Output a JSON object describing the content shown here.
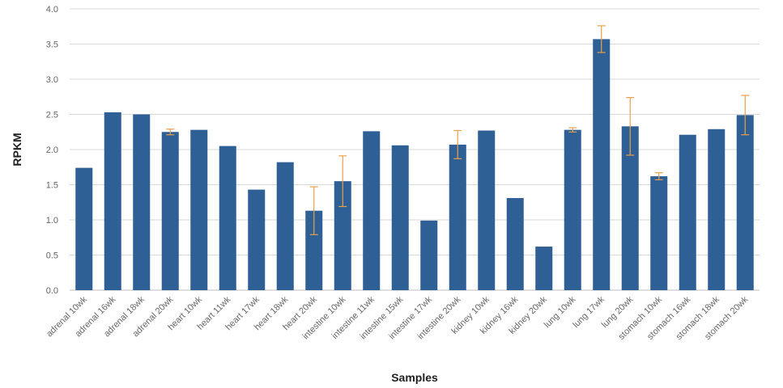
{
  "chart_data": {
    "type": "bar",
    "xlabel": "Samples",
    "ylabel": "RPKM",
    "ylim": [
      0,
      4.0
    ],
    "yticks": [
      "0.0",
      "0.5",
      "1.0",
      "1.5",
      "2.0",
      "2.5",
      "3.0",
      "3.5",
      "4.0"
    ],
    "grid": true,
    "categories": [
      "adrenal 10wk",
      "adrenal 16wk",
      "adrenal 18wk",
      "adrenal 20wk",
      "heart 10wk",
      "heart 11wk",
      "heart 17wk",
      "heart 18wk",
      "heart 20wk",
      "intestine 10wk",
      "intestine 11wk",
      "intestine 15wk",
      "intestine 17wk",
      "intestine 20wk",
      "kidney 10wk",
      "kidney 16wk",
      "kidney 20wk",
      "lung 10wk",
      "lung 17wk",
      "lung 20wk",
      "stomach 10wk",
      "stomach 16wk",
      "stomach 18wk",
      "stomach 20wk"
    ],
    "values": [
      1.74,
      2.53,
      2.5,
      2.25,
      2.28,
      2.05,
      1.43,
      1.82,
      1.13,
      1.55,
      2.26,
      2.06,
      0.99,
      2.07,
      2.27,
      1.31,
      0.62,
      2.28,
      3.57,
      2.33,
      1.62,
      2.21,
      2.29,
      2.49
    ],
    "errors": [
      null,
      null,
      null,
      0.04,
      null,
      null,
      null,
      null,
      0.34,
      0.36,
      null,
      null,
      null,
      0.2,
      null,
      null,
      null,
      0.03,
      0.19,
      0.41,
      0.05,
      null,
      null,
      0.28
    ],
    "colors": {
      "bar": "#2e5f95",
      "error": "#e8a04c"
    }
  }
}
